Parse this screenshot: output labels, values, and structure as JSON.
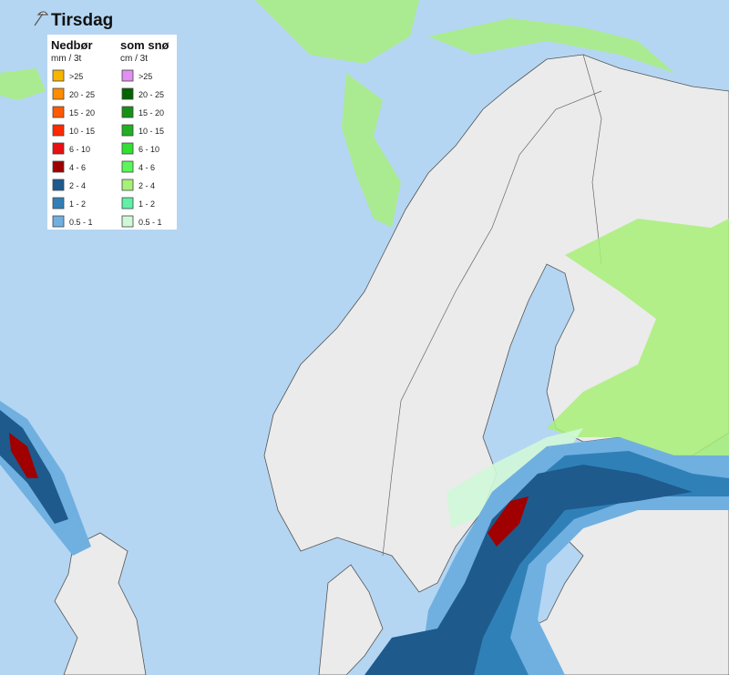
{
  "title": "Tirsdag",
  "legend": {
    "columns": [
      {
        "heading": "Nedbør",
        "unit": "mm / 3t",
        "items": [
          {
            "label": ">25",
            "color": "#f7b500"
          },
          {
            "label": "20 - 25",
            "color": "#ff8c00"
          },
          {
            "label": "15 - 20",
            "color": "#ff5a00"
          },
          {
            "label": "10 - 15",
            "color": "#ff2a00"
          },
          {
            "label": "6 - 10",
            "color": "#e81010"
          },
          {
            "label": "4 - 6",
            "color": "#a00000"
          },
          {
            "label": "2 - 4",
            "color": "#1e5a8c"
          },
          {
            "label": "1 - 2",
            "color": "#3080b8"
          },
          {
            "label": "0.5 - 1",
            "color": "#70b0e0"
          }
        ]
      },
      {
        "heading": "som snø",
        "unit": "cm / 3t",
        "items": [
          {
            "label": ">25",
            "color": "#e090f0"
          },
          {
            "label": "20 - 25",
            "color": "#006400"
          },
          {
            "label": "15 - 20",
            "color": "#189018"
          },
          {
            "label": "10 - 15",
            "color": "#20b020"
          },
          {
            "label": "6 - 10",
            "color": "#30e030"
          },
          {
            "label": "4 - 6",
            "color": "#58f858"
          },
          {
            "label": "2 - 4",
            "color": "#a8f078"
          },
          {
            "label": "1 - 2",
            "color": "#60f0a8"
          },
          {
            "label": "0.5 - 1",
            "color": "#d0f8d8"
          }
        ]
      }
    ]
  }
}
